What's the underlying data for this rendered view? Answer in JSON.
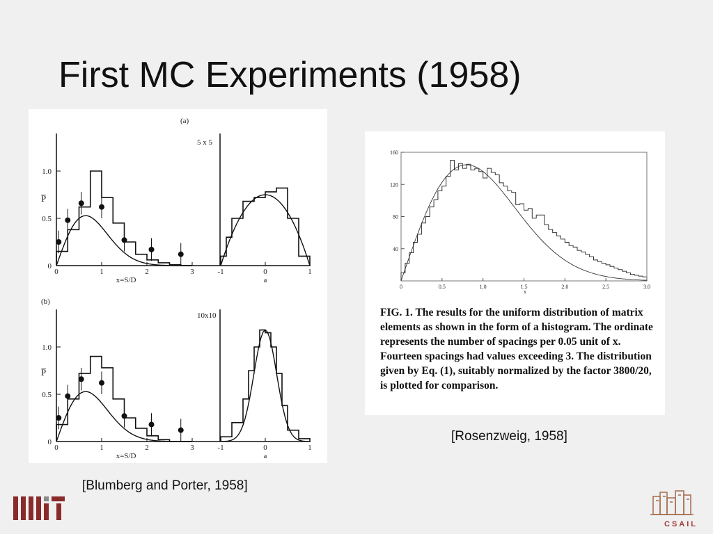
{
  "slide": {
    "title": "First MC Experiments (1958)",
    "citation_left": "[Blumberg and Porter, 1958]",
    "citation_right": "[Rosenzweig, 1958]",
    "logo_left": "MIT",
    "logo_right": "CSAIL"
  },
  "figure_left": {
    "panel_a": {
      "label": "(a)",
      "size_label": "5 x 5",
      "ylabel": "P̅",
      "y_ticks": [
        "0",
        "0.5",
        "1.0"
      ],
      "x_ticks_left": [
        "0",
        "1",
        "2",
        "3"
      ],
      "xlabel_left": "x=S/D",
      "x_ticks_right": [
        "-1",
        "0",
        "1"
      ],
      "xlabel_right": "a"
    },
    "panel_b": {
      "label": "(b)",
      "size_label": "10x10",
      "ylabel": "P̅",
      "y_ticks": [
        "0",
        "0.5",
        "1.0"
      ],
      "x_ticks_left": [
        "0",
        "1",
        "2",
        "3"
      ],
      "xlabel_left": "x=S/D",
      "x_ticks_right": [
        "-1",
        "0",
        "1"
      ],
      "xlabel_right": "a"
    }
  },
  "chart_data": [
    {
      "type": "bar",
      "panel": "a-left",
      "bin_edges": [
        0,
        0.25,
        0.5,
        0.75,
        1.0,
        1.25,
        1.5,
        1.75,
        2.0,
        2.25,
        2.5,
        2.75,
        3.0
      ],
      "values": [
        0.15,
        0.38,
        0.62,
        1.0,
        0.72,
        0.45,
        0.25,
        0.12,
        0.06,
        0.03,
        0.01,
        0.0
      ],
      "points_x": [
        0.05,
        0.25,
        0.55,
        1.0,
        1.5,
        2.1,
        2.75
      ],
      "points_y": [
        0.25,
        0.48,
        0.66,
        0.62,
        0.27,
        0.17,
        0.12
      ],
      "xlim": [
        0,
        3
      ],
      "ylim": [
        0,
        1.25
      ]
    },
    {
      "type": "bar",
      "panel": "a-right",
      "bin_edges": [
        -1,
        -0.875,
        -0.75,
        -0.5,
        -0.25,
        0,
        0.25,
        0.5,
        0.75,
        1.0
      ],
      "values": [
        0.1,
        0.3,
        0.5,
        0.68,
        0.72,
        0.78,
        0.82,
        0.5,
        0.1
      ],
      "xlim": [
        -1,
        1
      ],
      "ylim": [
        0,
        1.25
      ]
    },
    {
      "type": "bar",
      "panel": "b-left",
      "bin_edges": [
        0,
        0.25,
        0.5,
        0.75,
        1.0,
        1.25,
        1.5,
        1.75,
        2.0,
        2.25,
        2.5,
        2.75,
        3.0
      ],
      "values": [
        0.18,
        0.45,
        0.72,
        0.9,
        0.78,
        0.45,
        0.25,
        0.14,
        0.06,
        0.02,
        0.0,
        0.0
      ],
      "points_x": [
        0.05,
        0.25,
        0.55,
        1.0,
        1.5,
        2.1,
        2.75
      ],
      "points_y": [
        0.25,
        0.48,
        0.66,
        0.62,
        0.27,
        0.18,
        0.12
      ],
      "xlim": [
        0,
        3
      ],
      "ylim": [
        0,
        1.25
      ]
    },
    {
      "type": "bar",
      "panel": "b-right",
      "bin_edges": [
        -1,
        -0.75,
        -0.5,
        -0.375,
        -0.25,
        -0.125,
        0,
        0.125,
        0.25,
        0.375,
        0.5,
        0.75,
        1.0
      ],
      "values": [
        0.05,
        0.2,
        0.45,
        0.75,
        1.0,
        1.18,
        1.15,
        1.0,
        0.72,
        0.38,
        0.12,
        0.03
      ],
      "xlim": [
        -1,
        1
      ],
      "ylim": [
        0,
        1.25
      ]
    },
    {
      "type": "bar",
      "panel": "rosenzweig",
      "y_ticks": [
        "40",
        "80",
        "120",
        "160"
      ],
      "x_ticks": [
        "0",
        "0.5",
        "1.0",
        "1.5",
        "2.0",
        "2.5",
        "3.0"
      ],
      "xlabel": "x",
      "xlim": [
        0,
        3.0
      ],
      "ylim": [
        0,
        160
      ],
      "bin_width": 0.05,
      "values": [
        10,
        22,
        35,
        48,
        58,
        72,
        80,
        92,
        101,
        112,
        118,
        130,
        150,
        138,
        146,
        140,
        145,
        138,
        140,
        136,
        128,
        140,
        135,
        132,
        122,
        118,
        112,
        110,
        95,
        96,
        88,
        90,
        78,
        82,
        82,
        70,
        64,
        60,
        56,
        52,
        48,
        44,
        42,
        38,
        36,
        33,
        30,
        26,
        24,
        22,
        20,
        18,
        16,
        14,
        12,
        10,
        8,
        7,
        6,
        5
      ],
      "caption": "FIG. 1. The results for the uniform distribution of matrix elements as shown in the form of a histogram. The ordinate represents the number of spacings per 0.05 unit of x. Fourteen spacings had values exceeding 3. The distribution given by Eq. (1), suitably normalized by the factor 3800/20, is plotted for comparison."
    }
  ]
}
